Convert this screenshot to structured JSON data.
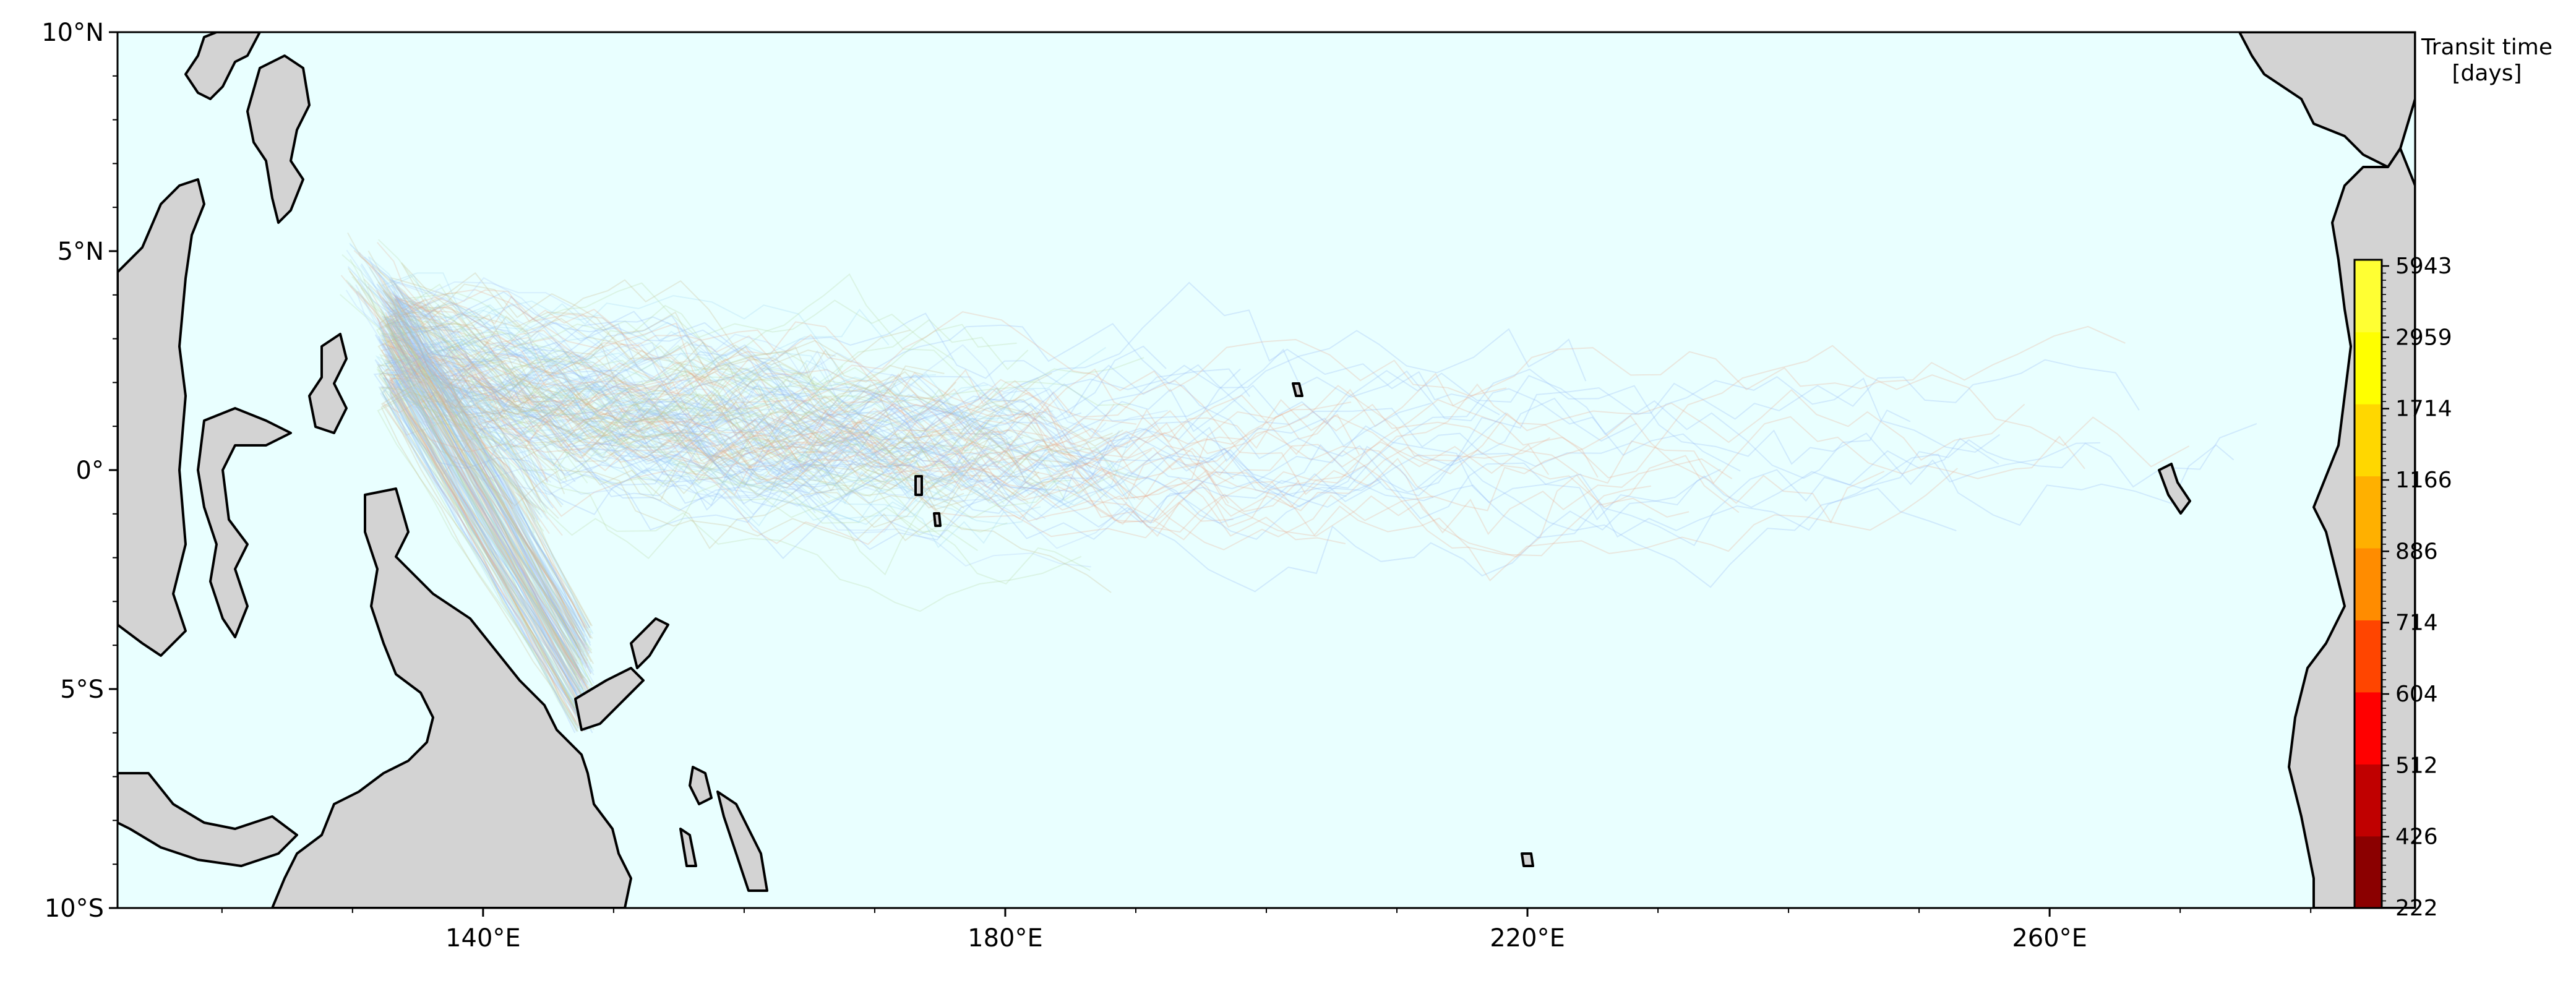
{
  "map": {
    "projection": "PlateCarree",
    "ocean_color": "#e9ffff",
    "land_color": "#d3d3d3",
    "coastline_color": "#000000",
    "lon_range": [
      112,
      288
    ],
    "lat_range": [
      -10,
      10
    ],
    "lon_ticks": [
      {
        "value": 140,
        "label": "140°E"
      },
      {
        "value": 180,
        "label": "180°E"
      },
      {
        "value": 220,
        "label": "220°E"
      },
      {
        "value": 260,
        "label": "260°E"
      }
    ],
    "lat_ticks": [
      {
        "value": 10,
        "label": "10°N"
      },
      {
        "value": 5,
        "label": "5°N"
      },
      {
        "value": 0,
        "label": "0°"
      },
      {
        "value": -5,
        "label": "5°S"
      },
      {
        "value": -10,
        "label": "10°S"
      }
    ],
    "trajectory_colors": [
      "#8fb5f5",
      "#a8c6f7",
      "#c8b88a",
      "#e9a98b",
      "#b7d9a3",
      "#9fd3f0"
    ]
  },
  "colorbar": {
    "title_line1": "Transit time",
    "title_line2": "[days]",
    "colors": [
      "#8b0000",
      "#c00000",
      "#ff0000",
      "#ff4500",
      "#ff8c00",
      "#ffb000",
      "#ffd700",
      "#ffff00",
      "#ffff33"
    ],
    "tick_labels": [
      "222",
      "426",
      "512",
      "604",
      "714",
      "886",
      "1166",
      "1714",
      "2959",
      "5943"
    ]
  }
}
